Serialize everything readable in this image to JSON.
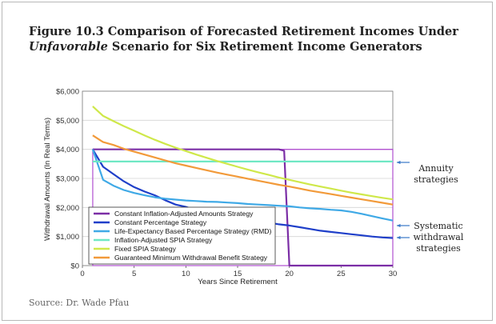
{
  "figure": {
    "title_line1": "Figure 10.3 Comparison of Forecasted Retirement Incomes Under",
    "title_line2_em": "Unfavorable",
    "title_line2_rest": " Scenario for Six Retirement Income Generators",
    "source": "Source: Dr. Wade Pfau"
  },
  "chart_data": {
    "type": "line",
    "title": "",
    "xlabel": "Years Since Retirement",
    "ylabel": "Withdrawal Amounts (In Real Terms)",
    "xlim": [
      0,
      30
    ],
    "ylim": [
      0,
      6000
    ],
    "x_ticks": [
      0,
      5,
      10,
      15,
      20,
      25,
      30
    ],
    "y_ticks": [
      0,
      1000,
      2000,
      3000,
      4000,
      5000,
      6000
    ],
    "y_tick_labels": [
      "$0",
      "$1,000",
      "$2,000",
      "$3,000",
      "$4,000",
      "$5,000",
      "$6,000"
    ],
    "grid": "horizontal",
    "legend_position": "lower-left",
    "series": [
      {
        "name": "Constant Inflation-Adjusted Amounts Strategy",
        "color": "#7b2ea6",
        "x": [
          1,
          2,
          5,
          10,
          15,
          18,
          19,
          19.5,
          20,
          30
        ],
        "y": [
          4000,
          4000,
          4000,
          4000,
          4000,
          4000,
          4000,
          3950,
          0,
          0
        ]
      },
      {
        "name": "Constant Percentage Strategy",
        "color": "#1f3fc9",
        "x": [
          1,
          2,
          3,
          4,
          5,
          6,
          7,
          8,
          9,
          10,
          11,
          12,
          13,
          14,
          15,
          16,
          17,
          18,
          19,
          20,
          21,
          22,
          23,
          24,
          25,
          26,
          27,
          28,
          29,
          30
        ],
        "y": [
          4000,
          3400,
          3150,
          2900,
          2700,
          2550,
          2420,
          2250,
          2100,
          2020,
          1900,
          1820,
          1720,
          1640,
          1600,
          1560,
          1520,
          1480,
          1420,
          1380,
          1320,
          1260,
          1200,
          1160,
          1120,
          1080,
          1040,
          1000,
          970,
          950
        ]
      },
      {
        "name": "Life-Expectancy Based Percentage Strategy (RMD)",
        "color": "#3fa9e6",
        "x": [
          1,
          2,
          3,
          4,
          5,
          6,
          7,
          8,
          9,
          10,
          11,
          12,
          13,
          14,
          15,
          16,
          17,
          18,
          19,
          20,
          21,
          22,
          23,
          24,
          25,
          26,
          27,
          28,
          29,
          30
        ],
        "y": [
          4000,
          2950,
          2750,
          2600,
          2500,
          2420,
          2350,
          2300,
          2270,
          2240,
          2220,
          2200,
          2190,
          2170,
          2150,
          2120,
          2100,
          2080,
          2060,
          2040,
          2000,
          1970,
          1950,
          1920,
          1900,
          1850,
          1780,
          1700,
          1620,
          1550
        ]
      },
      {
        "name": "Inflation-Adjusted SPIA Strategy",
        "color": "#6fe8c4",
        "x": [
          1,
          30
        ],
        "y": [
          3580,
          3580
        ]
      },
      {
        "name": "Fixed SPIA Strategy",
        "color": "#cfe84a",
        "x": [
          1,
          2,
          3,
          4,
          5,
          6,
          7,
          8,
          9,
          10,
          11,
          12,
          13,
          14,
          15,
          16,
          17,
          18,
          19,
          20,
          21,
          22,
          23,
          24,
          25,
          26,
          27,
          28,
          29,
          30
        ],
        "y": [
          5480,
          5150,
          4970,
          4800,
          4640,
          4480,
          4330,
          4190,
          4060,
          3940,
          3820,
          3710,
          3600,
          3500,
          3400,
          3300,
          3210,
          3120,
          3030,
          2950,
          2870,
          2790,
          2720,
          2650,
          2580,
          2510,
          2450,
          2390,
          2330,
          2280
        ]
      },
      {
        "name": "Guaranteed Minimum Withdrawal Benefit Strategy",
        "color": "#f29a3a",
        "x": [
          1,
          2,
          3,
          4,
          5,
          6,
          7,
          8,
          9,
          10,
          11,
          12,
          13,
          14,
          15,
          16,
          17,
          18,
          19,
          20,
          21,
          22,
          23,
          24,
          25,
          26,
          27,
          28,
          29,
          30
        ],
        "y": [
          4480,
          4250,
          4150,
          4020,
          3920,
          3820,
          3720,
          3620,
          3520,
          3440,
          3360,
          3280,
          3200,
          3130,
          3060,
          2990,
          2920,
          2850,
          2780,
          2720,
          2650,
          2580,
          2520,
          2460,
          2400,
          2340,
          2280,
          2220,
          2160,
          2100
        ]
      }
    ],
    "annotations": [
      {
        "label": "Annuity strategies",
        "lines": [
          "Annuity",
          "strategies"
        ]
      },
      {
        "label": "Systematic withdrawal strategies",
        "lines": [
          "Systematic",
          "withdrawal",
          "strategies"
        ]
      }
    ]
  }
}
